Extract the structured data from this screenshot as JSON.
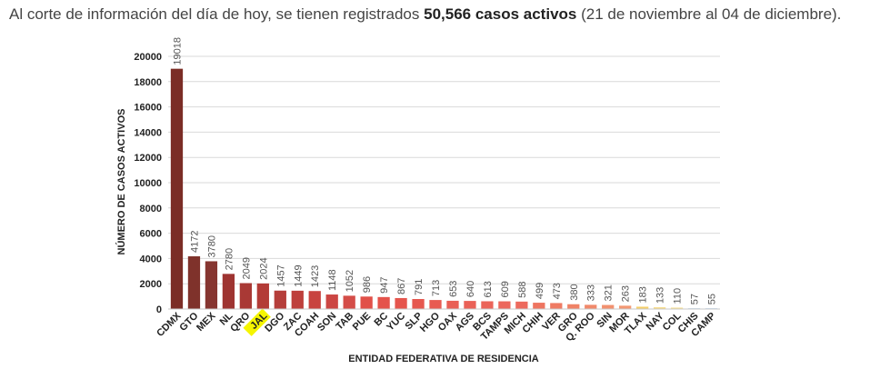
{
  "intro": {
    "part1": "Al corte de información del día de hoy, se tienen registrados ",
    "bold": "50,566 casos activos",
    "part2": " (21 de noviembre al 04 de diciembre)."
  },
  "chart_data": {
    "type": "bar",
    "title": "",
    "xlabel": "ENTIDAD FEDERATIVA DE RESIDENCIA",
    "ylabel": "NÚMERO DE CASOS ACTIVOS",
    "ylim": [
      0,
      20000
    ],
    "yticks": [
      0,
      2000,
      4000,
      6000,
      8000,
      10000,
      12000,
      14000,
      16000,
      18000,
      20000
    ],
    "grid": true,
    "highlight_category": "JAL",
    "highlight_color": "#f5f500",
    "categories": [
      "CDMX",
      "GTO",
      "MEX",
      "NL",
      "QRO",
      "JAL",
      "DGO",
      "ZAC",
      "COAH",
      "SON",
      "TAB",
      "PUE",
      "BC",
      "YUC",
      "SLP",
      "HGO",
      "OAX",
      "AGS",
      "BCS",
      "TAMPS",
      "MICH",
      "CHIH",
      "VER",
      "GRO",
      "Q. ROO",
      "SIN",
      "MOR",
      "TLAX",
      "NAY",
      "COL",
      "CHIS",
      "CAMP"
    ],
    "values": [
      19018,
      4172,
      3780,
      2780,
      2049,
      2024,
      1457,
      1449,
      1423,
      1148,
      1052,
      986,
      947,
      867,
      791,
      713,
      653,
      640,
      613,
      609,
      588,
      499,
      473,
      380,
      333,
      321,
      263,
      183,
      133,
      110,
      57,
      55
    ],
    "colors": [
      "#7b2d26",
      "#7f322b",
      "#863530",
      "#9e3431",
      "#a93935",
      "#b33b37",
      "#b53e3a",
      "#be403c",
      "#c8433f",
      "#cc4643",
      "#d44d48",
      "#e15149",
      "#e4534b",
      "#e5554d",
      "#e6584f",
      "#e85b52",
      "#e95f55",
      "#ea6157",
      "#eb6459",
      "#ec675c",
      "#ed6a5e",
      "#ee7560",
      "#ef7b63",
      "#f08266",
      "#f1896b",
      "#f2916f",
      "#f39873",
      "#f5cf6a",
      "#f6d97e",
      "#f7df8e",
      "#aac7e6",
      "#9bc1e8"
    ]
  }
}
